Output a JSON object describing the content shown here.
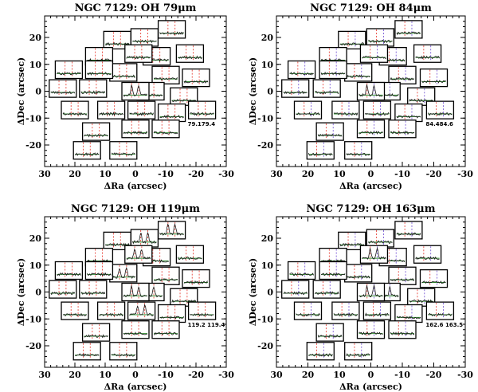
{
  "chart_data": [
    {
      "type": "scatter",
      "title": "NGC 7129: OH 79μm",
      "xlabel": "ΔRa (arcsec)",
      "ylabel": "ΔDec (arcsec)",
      "xlim": [
        30,
        -30
      ],
      "ylim": [
        -28,
        28
      ],
      "xticks": [
        30,
        20,
        10,
        0,
        -10,
        -20,
        -30
      ],
      "yticks": [
        -20,
        -10,
        0,
        10,
        20
      ],
      "line_labels": [
        "79.1",
        "79.4"
      ],
      "label_text": "79.179.4",
      "emission_spaxels": [
        [
          0,
          0
        ]
      ],
      "spaxels": [
        [
          -12,
          23
        ],
        [
          -3,
          20
        ],
        [
          6,
          19
        ],
        [
          -18,
          14
        ],
        [
          -7,
          13
        ],
        [
          -1,
          14
        ],
        [
          12,
          13
        ],
        [
          -20,
          5
        ],
        [
          -10,
          6
        ],
        [
          4,
          7
        ],
        [
          22,
          8
        ],
        [
          12,
          8
        ],
        [
          -16,
          -2
        ],
        [
          -5,
          0
        ],
        [
          0,
          0
        ],
        [
          14,
          1
        ],
        [
          24,
          1
        ],
        [
          -22,
          -7
        ],
        [
          -12,
          -8
        ],
        [
          -2,
          -7
        ],
        [
          8,
          -7
        ],
        [
          20,
          -7
        ],
        [
          -10,
          -14
        ],
        [
          0,
          -14
        ],
        [
          13,
          -15
        ],
        [
          4,
          -22
        ],
        [
          16,
          -22
        ]
      ]
    },
    {
      "type": "scatter",
      "title": "NGC 7129: OH 84μm",
      "xlabel": "ΔRa (arcsec)",
      "ylabel": "ΔDec (arcsec)",
      "xlim": [
        30,
        -30
      ],
      "ylim": [
        -28,
        28
      ],
      "xticks": [
        30,
        20,
        10,
        0,
        -10,
        -20,
        -30
      ],
      "yticks": [
        -20,
        -10,
        0,
        10,
        20
      ],
      "line_labels": [
        "84.4",
        "84.6"
      ],
      "label_text": "84.484.6",
      "emission_spaxels": [
        [
          0,
          0
        ]
      ],
      "spaxels": [
        [
          -12,
          23
        ],
        [
          -3,
          20
        ],
        [
          6,
          19
        ],
        [
          -18,
          14
        ],
        [
          -7,
          13
        ],
        [
          -1,
          14
        ],
        [
          12,
          13
        ],
        [
          -20,
          5
        ],
        [
          -10,
          6
        ],
        [
          4,
          7
        ],
        [
          22,
          8
        ],
        [
          12,
          8
        ],
        [
          -16,
          -2
        ],
        [
          -5,
          0
        ],
        [
          0,
          0
        ],
        [
          14,
          1
        ],
        [
          24,
          1
        ],
        [
          -22,
          -7
        ],
        [
          -12,
          -8
        ],
        [
          -2,
          -7
        ],
        [
          8,
          -7
        ],
        [
          20,
          -7
        ],
        [
          -10,
          -14
        ],
        [
          0,
          -14
        ],
        [
          13,
          -15
        ],
        [
          4,
          -22
        ],
        [
          16,
          -22
        ]
      ]
    },
    {
      "type": "scatter",
      "title": "NGC 7129: OH 119μm",
      "xlabel": "ΔRa (arcsec)",
      "ylabel": "ΔDec (arcsec)",
      "xlim": [
        30,
        -30
      ],
      "ylim": [
        -28,
        28
      ],
      "xticks": [
        30,
        20,
        10,
        0,
        -10,
        -20,
        -30
      ],
      "yticks": [
        -20,
        -10,
        0,
        10,
        20
      ],
      "line_labels": [
        "119.2",
        "119.4"
      ],
      "label_text": "119.2  119.4",
      "emission_spaxels": [
        [
          -12,
          23
        ],
        [
          -3,
          20
        ],
        [
          -1,
          14
        ],
        [
          -5,
          0
        ],
        [
          0,
          0
        ],
        [
          2,
          3
        ],
        [
          4,
          7
        ],
        [
          -2,
          -7
        ],
        [
          8,
          7
        ]
      ],
      "spaxels": [
        [
          -12,
          23
        ],
        [
          -3,
          20
        ],
        [
          6,
          19
        ],
        [
          -18,
          14
        ],
        [
          -7,
          13
        ],
        [
          -1,
          14
        ],
        [
          12,
          13
        ],
        [
          -20,
          5
        ],
        [
          -10,
          6
        ],
        [
          4,
          7
        ],
        [
          22,
          8
        ],
        [
          12,
          8
        ],
        [
          -16,
          -2
        ],
        [
          -5,
          0
        ],
        [
          0,
          0
        ],
        [
          14,
          1
        ],
        [
          24,
          1
        ],
        [
          -22,
          -7
        ],
        [
          -12,
          -8
        ],
        [
          -2,
          -7
        ],
        [
          8,
          -7
        ],
        [
          20,
          -7
        ],
        [
          -10,
          -14
        ],
        [
          0,
          -14
        ],
        [
          13,
          -15
        ],
        [
          4,
          -22
        ],
        [
          16,
          -22
        ]
      ]
    },
    {
      "type": "scatter",
      "title": "NGC 7129: OH 163μm",
      "xlabel": "ΔRa (arcsec)",
      "ylabel": "ΔDec (arcsec)",
      "xlim": [
        30,
        -30
      ],
      "ylim": [
        -28,
        28
      ],
      "xticks": [
        30,
        20,
        10,
        0,
        -10,
        -20,
        -30
      ],
      "yticks": [
        -20,
        -10,
        0,
        10,
        20
      ],
      "line_labels": [
        "162.6",
        "163.5"
      ],
      "label_text": "162.6  163.5",
      "emission_spaxels": [
        [
          0,
          0
        ],
        [
          -1,
          14
        ],
        [
          -5,
          0
        ]
      ],
      "spaxels": [
        [
          -12,
          23
        ],
        [
          -3,
          20
        ],
        [
          6,
          19
        ],
        [
          -18,
          14
        ],
        [
          -7,
          13
        ],
        [
          -1,
          14
        ],
        [
          12,
          13
        ],
        [
          -20,
          5
        ],
        [
          -10,
          6
        ],
        [
          4,
          7
        ],
        [
          22,
          8
        ],
        [
          12,
          8
        ],
        [
          -16,
          -2
        ],
        [
          -5,
          0
        ],
        [
          0,
          0
        ],
        [
          14,
          1
        ],
        [
          24,
          1
        ],
        [
          -22,
          -7
        ],
        [
          -12,
          -8
        ],
        [
          -2,
          -7
        ],
        [
          8,
          -7
        ],
        [
          20,
          -7
        ],
        [
          -10,
          -14
        ],
        [
          0,
          -14
        ],
        [
          13,
          -15
        ],
        [
          4,
          -22
        ],
        [
          16,
          -22
        ]
      ]
    }
  ],
  "colors": {
    "axis": "#000000",
    "spectrum": "#1a1a1a",
    "fit": "#2e8b2e",
    "line_marker_a": "#e8463c",
    "line_marker_b": "#7b5cd6"
  }
}
